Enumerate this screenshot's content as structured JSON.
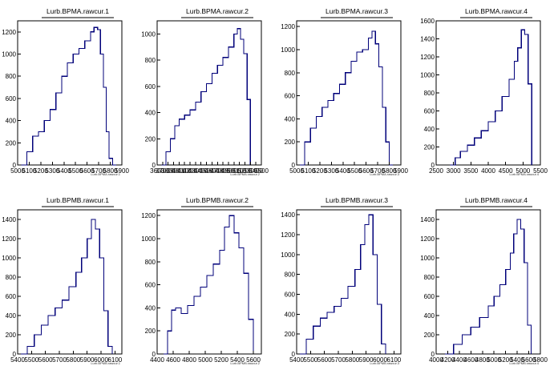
{
  "chart_data": [
    {
      "type": "histogram",
      "title": "Lurb.BPMA.rawcur.1",
      "xlabel": "Lurb.BPMA.rawcur.1",
      "xlim": [
        5000,
        5900
      ],
      "ylim": [
        0,
        1300
      ],
      "xticks": [
        5000,
        5100,
        5200,
        5300,
        5400,
        5500,
        5600,
        5700,
        5800,
        5900
      ],
      "yticks": [
        0,
        200,
        400,
        600,
        800,
        1000,
        1200
      ],
      "xticklabels": [
        "5000",
        "5100",
        "5200",
        "5300",
        "5400",
        "5500",
        "5600",
        "5700",
        "5800",
        "5900"
      ],
      "yticklabels": [
        "0",
        "200",
        "400",
        "600",
        "800",
        "1000",
        "1200"
      ],
      "bins": {
        "x": [
          5030,
          5080,
          5130,
          5180,
          5230,
          5280,
          5330,
          5380,
          5430,
          5480,
          5530,
          5580,
          5630,
          5660,
          5690,
          5715,
          5740,
          5765,
          5790,
          5820,
          5850
        ],
        "y": [
          0,
          120,
          260,
          300,
          400,
          500,
          650,
          800,
          920,
          1000,
          1050,
          1120,
          1200,
          1240,
          1220,
          1000,
          700,
          300,
          60,
          0,
          0
        ]
      }
    },
    {
      "type": "histogram",
      "title": "Lurb.BPMA.rawcur.2",
      "xlabel": "Lurb.BPMA.rawcur.2",
      "xlim": [
        3600,
        5500
      ],
      "ylim": [
        0,
        1100
      ],
      "xticks": [
        3600,
        3700,
        3800,
        3900,
        4000,
        4100,
        4200,
        4300,
        4400,
        4500,
        4600,
        4700,
        4800,
        4900,
        5000,
        5100,
        5200,
        5300,
        5400,
        5500
      ],
      "yticks": [
        0,
        200,
        400,
        600,
        800,
        1000
      ],
      "xticklabels": [
        "3600",
        "3700",
        "3800",
        "3900",
        "4000",
        "4100",
        "4200",
        "4300",
        "4400",
        "4500",
        "4600",
        "4700",
        "4800",
        "4900",
        "5000",
        "5100",
        "5200",
        "5300",
        "5400",
        "5500"
      ],
      "yticklabels": [
        "0",
        "200",
        "400",
        "600",
        "800",
        "1000"
      ],
      "bins": {
        "x": [
          3680,
          3760,
          3840,
          3920,
          4000,
          4100,
          4200,
          4300,
          4400,
          4500,
          4600,
          4700,
          4800,
          4900,
          5000,
          5060,
          5120,
          5180,
          5240,
          5300
        ],
        "y": [
          0,
          100,
          200,
          300,
          350,
          380,
          420,
          480,
          560,
          620,
          700,
          760,
          820,
          900,
          1000,
          1040,
          960,
          850,
          500,
          0
        ]
      }
    },
    {
      "type": "histogram",
      "title": "Lurb.BPMA.rawcur.3",
      "xlabel": "Lurb.BPMA.rawcur.3",
      "xlim": [
        5000,
        5900
      ],
      "ylim": [
        0,
        1250
      ],
      "xticks": [
        5000,
        5100,
        5200,
        5300,
        5400,
        5500,
        5600,
        5700,
        5800,
        5900
      ],
      "yticks": [
        0,
        200,
        400,
        600,
        800,
        1000,
        1200
      ],
      "xticklabels": [
        "5000",
        "5100",
        "5200",
        "5300",
        "5400",
        "5500",
        "5600",
        "5700",
        "5800",
        "5900"
      ],
      "yticklabels": [
        "0",
        "200",
        "400",
        "600",
        "800",
        "1000",
        "1200"
      ],
      "bins": {
        "x": [
          5020,
          5070,
          5120,
          5170,
          5220,
          5270,
          5320,
          5370,
          5420,
          5470,
          5520,
          5570,
          5620,
          5650,
          5680,
          5710,
          5740,
          5770,
          5800,
          5830
        ],
        "y": [
          0,
          200,
          320,
          420,
          500,
          560,
          620,
          700,
          800,
          900,
          980,
          1000,
          1100,
          1160,
          1050,
          850,
          500,
          200,
          0,
          0
        ]
      }
    },
    {
      "type": "histogram",
      "title": "Lurb.BPMA.rawcur.4",
      "xlabel": "Lurb.BPMA.rawcur.4",
      "xlim": [
        2500,
        5500
      ],
      "ylim": [
        0,
        1600
      ],
      "xticks": [
        2500,
        3000,
        3500,
        4000,
        4500,
        5000,
        5500
      ],
      "yticks": [
        0,
        200,
        400,
        600,
        800,
        1000,
        1200,
        1400,
        1600
      ],
      "xticklabels": [
        "2500",
        "3000",
        "3500",
        "4000",
        "4500",
        "5000",
        "5500"
      ],
      "yticklabels": [
        "0",
        "200",
        "400",
        "600",
        "800",
        "1000",
        "1200",
        "1400",
        "1600"
      ],
      "bins": {
        "x": [
          2900,
          3050,
          3200,
          3400,
          3600,
          3800,
          4000,
          4200,
          4400,
          4600,
          4750,
          4850,
          4950,
          5050,
          5150,
          5250
        ],
        "y": [
          0,
          80,
          150,
          220,
          300,
          380,
          480,
          600,
          760,
          950,
          1150,
          1300,
          1500,
          1450,
          900,
          0
        ]
      }
    },
    {
      "type": "histogram",
      "title": "Lurb.BPMB.rawcur.1",
      "xlabel": "Lurb.BPMB.rawcur.1",
      "xlim": [
        5400,
        6150
      ],
      "ylim": [
        0,
        1500
      ],
      "xticks": [
        5400,
        5500,
        5600,
        5700,
        5800,
        5900,
        6000,
        6100
      ],
      "yticks": [
        0,
        200,
        400,
        600,
        800,
        1000,
        1200,
        1400
      ],
      "xticklabels": [
        "5400",
        "5500",
        "5600",
        "5700",
        "5800",
        "5900",
        "6000",
        "6100"
      ],
      "yticklabels": [
        "0",
        "200",
        "400",
        "600",
        "800",
        "1000",
        "1200",
        "1400"
      ],
      "bins": {
        "x": [
          5420,
          5470,
          5520,
          5570,
          5620,
          5670,
          5720,
          5770,
          5820,
          5860,
          5900,
          5930,
          5960,
          5990,
          6020,
          6050,
          6080
        ],
        "y": [
          0,
          80,
          200,
          300,
          400,
          480,
          560,
          700,
          850,
          1000,
          1200,
          1400,
          1300,
          1000,
          450,
          80,
          0
        ]
      }
    },
    {
      "type": "histogram",
      "title": "Lurb.BPMB.rawcur.2",
      "xlabel": "Lurb.BPMB.rawcur.2",
      "xlim": [
        4400,
        5700
      ],
      "ylim": [
        0,
        1250
      ],
      "xticks": [
        4400,
        4600,
        4800,
        5000,
        5200,
        5400,
        5600
      ],
      "yticks": [
        0,
        200,
        400,
        600,
        800,
        1000,
        1200
      ],
      "xticklabels": [
        "4400",
        "4600",
        "4800",
        "5000",
        "5200",
        "5400",
        "5600"
      ],
      "yticklabels": [
        "0",
        "200",
        "400",
        "600",
        "800",
        "1000",
        "1200"
      ],
      "bins": {
        "x": [
          4480,
          4530,
          4580,
          4630,
          4700,
          4780,
          4860,
          4940,
          5020,
          5100,
          5180,
          5240,
          5300,
          5360,
          5420,
          5480,
          5540,
          5600
        ],
        "y": [
          0,
          200,
          380,
          400,
          350,
          420,
          500,
          580,
          680,
          780,
          900,
          1100,
          1200,
          1050,
          920,
          700,
          300,
          0
        ]
      }
    },
    {
      "type": "histogram",
      "title": "Lurb.BPMB.rawcur.3",
      "xlabel": "Lurb.BPMB.rawcur.3",
      "xlim": [
        5400,
        6150
      ],
      "ylim": [
        0,
        1450
      ],
      "xticks": [
        5400,
        5500,
        5600,
        5700,
        5800,
        5900,
        6000,
        6100
      ],
      "yticks": [
        0,
        200,
        400,
        600,
        800,
        1000,
        1200,
        1400
      ],
      "xticklabels": [
        "5400",
        "5500",
        "5600",
        "5700",
        "5800",
        "5900",
        "6000",
        "6100"
      ],
      "yticklabels": [
        "0",
        "200",
        "400",
        "600",
        "800",
        "1000",
        "1200",
        "1400"
      ],
      "bins": {
        "x": [
          5420,
          5470,
          5520,
          5570,
          5620,
          5670,
          5720,
          5770,
          5820,
          5860,
          5890,
          5920,
          5950,
          5980,
          6010,
          6040
        ],
        "y": [
          0,
          150,
          280,
          360,
          420,
          480,
          560,
          680,
          850,
          1100,
          1300,
          1400,
          1000,
          500,
          100,
          0
        ]
      }
    },
    {
      "type": "histogram",
      "title": "Lurb.BPMB.rawcur.4",
      "xlabel": "Lurb.BPMB.rawcur.4",
      "xlim": [
        4000,
        5800
      ],
      "ylim": [
        0,
        1500
      ],
      "xticks": [
        4000,
        4200,
        4400,
        4600,
        4800,
        5000,
        5200,
        5400,
        5600,
        5800
      ],
      "yticks": [
        0,
        200,
        400,
        600,
        800,
        1000,
        1200,
        1400
      ],
      "xticklabels": [
        "4000",
        "4200",
        "4400",
        "4600",
        "4800",
        "5000",
        "5200",
        "5400",
        "5600",
        "5800"
      ],
      "yticklabels": [
        "0",
        "200",
        "400",
        "600",
        "800",
        "1000",
        "1200",
        "1400"
      ],
      "bins": {
        "x": [
          4150,
          4300,
          4450,
          4600,
          4750,
          4900,
          5000,
          5100,
          5200,
          5280,
          5340,
          5400,
          5460,
          5520,
          5580,
          5640
        ],
        "y": [
          0,
          100,
          200,
          280,
          380,
          500,
          600,
          720,
          880,
          1050,
          1250,
          1400,
          1300,
          950,
          300,
          0
        ]
      }
    }
  ]
}
